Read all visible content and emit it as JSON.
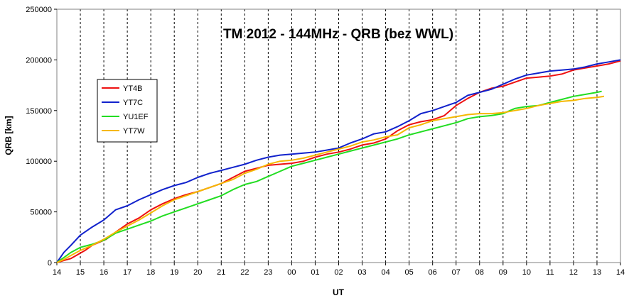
{
  "chart_data": {
    "type": "line",
    "title": "TM 2012 - 144MHz - QRB (bez WWL)",
    "xlabel": "UT",
    "ylabel": "QRB [km]",
    "x_ticks": [
      "14",
      "15",
      "16",
      "17",
      "18",
      "19",
      "20",
      "21",
      "22",
      "23",
      "00",
      "01",
      "02",
      "03",
      "04",
      "05",
      "06",
      "07",
      "08",
      "09",
      "10",
      "11",
      "12",
      "13",
      "14"
    ],
    "xlim_hours": [
      0,
      24
    ],
    "ylim": [
      0,
      250000
    ],
    "y_ticks": [
      0,
      50000,
      100000,
      150000,
      200000,
      250000
    ],
    "grid": {
      "vertical": "dashed",
      "horizontal": "none"
    },
    "legend_position": "left",
    "series": [
      {
        "name": "YT4B",
        "color": "#ee1111",
        "x": [
          0,
          0.3,
          0.6,
          0.9,
          1.2,
          1.5,
          1.8,
          2.1,
          2.5,
          3,
          3.5,
          4,
          4.5,
          5,
          5.5,
          6,
          6.5,
          7,
          7.5,
          8,
          8.5,
          9,
          9.5,
          10,
          10.5,
          11,
          11.5,
          12,
          12.5,
          13,
          13.5,
          14,
          14.5,
          15,
          15.5,
          16,
          16.5,
          17,
          17.5,
          18,
          18.5,
          19,
          19.5,
          20,
          20.5,
          21,
          21.5,
          22,
          22.5,
          23,
          23.5,
          24
        ],
        "values": [
          0,
          2000,
          4000,
          8000,
          12000,
          17000,
          20000,
          23000,
          30000,
          38000,
          44000,
          52000,
          58000,
          63000,
          67000,
          70000,
          74000,
          78000,
          84000,
          90000,
          93000,
          96000,
          97000,
          98000,
          100000,
          104000,
          107000,
          109000,
          112000,
          116000,
          118000,
          122000,
          130000,
          136000,
          139000,
          141000,
          145000,
          155000,
          162000,
          168000,
          172000,
          174000,
          178000,
          182000,
          183000,
          184000,
          186000,
          190000,
          192000,
          194000,
          196000,
          199000
        ]
      },
      {
        "name": "YT7C",
        "color": "#1122cc",
        "x": [
          0,
          0.3,
          0.6,
          1,
          1.5,
          2,
          2.5,
          3,
          3.5,
          4,
          4.5,
          5,
          5.5,
          6,
          6.5,
          7,
          7.5,
          8,
          8.5,
          9,
          9.5,
          10,
          10.5,
          11,
          11.5,
          12,
          12.5,
          13,
          13.5,
          14,
          14.5,
          15,
          15.5,
          16,
          16.5,
          17,
          17.5,
          18,
          18.5,
          19,
          19.5,
          20,
          20.5,
          21,
          21.5,
          22,
          22.5,
          23,
          23.5,
          24
        ],
        "values": [
          0,
          10000,
          17000,
          27000,
          35000,
          42000,
          52000,
          56000,
          62000,
          67000,
          72000,
          76000,
          79000,
          84000,
          88000,
          91000,
          94000,
          97000,
          101000,
          104000,
          106000,
          107000,
          108000,
          109000,
          111000,
          113000,
          118000,
          122000,
          127000,
          129000,
          134000,
          140000,
          147000,
          150000,
          154000,
          158000,
          165000,
          168000,
          171000,
          176000,
          181000,
          185000,
          187000,
          189000,
          190000,
          191000,
          193000,
          196000,
          198000,
          200000
        ]
      },
      {
        "name": "YU1EF",
        "color": "#22dd22",
        "x": [
          0,
          0.3,
          0.6,
          1,
          1.5,
          2,
          2.5,
          3,
          3.5,
          4,
          4.5,
          5,
          5.5,
          6,
          6.5,
          7,
          7.5,
          8,
          8.5,
          9,
          9.5,
          10,
          10.5,
          11,
          11.5,
          12,
          12.5,
          13,
          13.5,
          14,
          14.5,
          15,
          15.5,
          16,
          16.5,
          17,
          17.5,
          18,
          18.5,
          19,
          19.5,
          20,
          20.5,
          21,
          21.5,
          22,
          22.5,
          23,
          23.2
        ],
        "values": [
          0,
          5000,
          10000,
          15000,
          18000,
          22000,
          29000,
          33000,
          37000,
          41000,
          46000,
          50000,
          54000,
          58000,
          62000,
          66000,
          72000,
          77000,
          80000,
          85000,
          90000,
          95000,
          98000,
          101000,
          104000,
          107000,
          110000,
          113000,
          116000,
          119000,
          122000,
          126000,
          129000,
          132000,
          135000,
          138000,
          142000,
          144000,
          145000,
          147000,
          152000,
          154000,
          155000,
          158000,
          161000,
          164000,
          166000,
          168000,
          169000
        ]
      },
      {
        "name": "YT7W",
        "color": "#f5b800",
        "x": [
          0,
          0.3,
          0.6,
          1,
          1.5,
          2,
          2.5,
          3,
          3.5,
          4,
          4.5,
          5,
          5.5,
          6,
          6.5,
          7,
          7.5,
          8,
          8.5,
          9,
          9.5,
          10,
          10.5,
          11,
          11.5,
          12,
          12.5,
          13,
          13.5,
          14,
          14.5,
          15,
          15.5,
          16,
          16.5,
          17,
          17.5,
          18,
          18.5,
          19,
          19.5,
          20,
          20.5,
          21,
          21.5,
          22,
          22.5,
          23,
          23.3
        ],
        "values": [
          0,
          3000,
          7000,
          12000,
          17000,
          23000,
          30000,
          36000,
          42000,
          49000,
          56000,
          62000,
          66000,
          70000,
          74000,
          78000,
          82000,
          88000,
          92000,
          97000,
          100000,
          101000,
          103000,
          106000,
          109000,
          112000,
          115000,
          119000,
          121000,
          124000,
          126000,
          133000,
          136000,
          140000,
          142000,
          144000,
          146000,
          147000,
          147000,
          148000,
          150000,
          152000,
          155000,
          157000,
          159000,
          160000,
          162000,
          163000,
          164000
        ]
      }
    ]
  }
}
